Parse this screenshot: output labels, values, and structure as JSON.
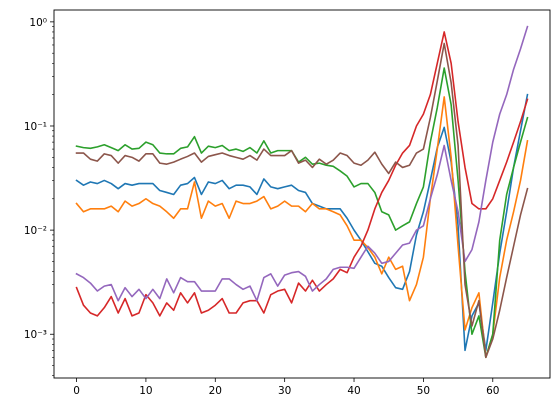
{
  "chart_data": {
    "type": "line",
    "title": "",
    "xlabel": "",
    "ylabel": "",
    "x": [
      0,
      1,
      2,
      3,
      4,
      5,
      6,
      7,
      8,
      9,
      10,
      11,
      12,
      13,
      14,
      15,
      16,
      17,
      18,
      19,
      20,
      21,
      22,
      23,
      24,
      25,
      26,
      27,
      28,
      29,
      30,
      31,
      32,
      33,
      34,
      35,
      36,
      37,
      38,
      39,
      40,
      41,
      42,
      43,
      44,
      45,
      46,
      47,
      48,
      49,
      50,
      51,
      52,
      53,
      54,
      55,
      56,
      57,
      58,
      59,
      60,
      61,
      62,
      63,
      64,
      65
    ],
    "xlim": [
      -3.25,
      68.25
    ],
    "ylim": [
      0.00038,
      1.3
    ],
    "yscale": "log",
    "grid": false,
    "xticks": [
      0,
      10,
      20,
      30,
      40,
      50,
      60
    ],
    "xtick_labels": [
      "0",
      "10",
      "20",
      "30",
      "40",
      "50",
      "60"
    ],
    "yticks": [
      0.001,
      0.01,
      0.1,
      1
    ],
    "ytick_labels": [
      "10⁻³",
      "10⁻²",
      "10⁻¹",
      "10⁰"
    ],
    "series": [
      {
        "color": "#1f77b4",
        "values": [
          0.03,
          0.027,
          0.029,
          0.028,
          0.03,
          0.028,
          0.025,
          0.028,
          0.027,
          0.028,
          0.028,
          0.028,
          0.024,
          0.023,
          0.022,
          0.027,
          0.028,
          0.032,
          0.022,
          0.029,
          0.028,
          0.03,
          0.025,
          0.027,
          0.027,
          0.026,
          0.022,
          0.031,
          0.026,
          0.025,
          0.026,
          0.027,
          0.024,
          0.023,
          0.018,
          0.017,
          0.016,
          0.016,
          0.016,
          0.013,
          0.01,
          0.008,
          0.0062,
          0.0048,
          0.0045,
          0.0035,
          0.0028,
          0.0027,
          0.004,
          0.009,
          0.015,
          0.03,
          0.062,
          0.097,
          0.045,
          0.011,
          0.0007,
          0.0015,
          0.002,
          0.0007,
          0.002,
          0.006,
          0.015,
          0.04,
          0.09,
          0.2
        ]
      },
      {
        "color": "#ff7f0e",
        "values": [
          0.018,
          0.015,
          0.016,
          0.016,
          0.016,
          0.017,
          0.015,
          0.019,
          0.017,
          0.018,
          0.02,
          0.018,
          0.017,
          0.015,
          0.013,
          0.016,
          0.016,
          0.029,
          0.013,
          0.019,
          0.017,
          0.018,
          0.013,
          0.019,
          0.018,
          0.018,
          0.019,
          0.021,
          0.016,
          0.017,
          0.019,
          0.017,
          0.017,
          0.015,
          0.018,
          0.016,
          0.016,
          0.015,
          0.014,
          0.011,
          0.008,
          0.008,
          0.0068,
          0.0055,
          0.0038,
          0.0055,
          0.0042,
          0.0045,
          0.0021,
          0.003,
          0.0055,
          0.02,
          0.06,
          0.19,
          0.05,
          0.007,
          0.0011,
          0.0018,
          0.0025,
          0.0006,
          0.001,
          0.0035,
          0.008,
          0.015,
          0.03,
          0.072
        ]
      },
      {
        "color": "#2ca02c",
        "values": [
          0.064,
          0.062,
          0.061,
          0.063,
          0.066,
          0.062,
          0.058,
          0.066,
          0.06,
          0.061,
          0.07,
          0.066,
          0.055,
          0.054,
          0.054,
          0.061,
          0.063,
          0.079,
          0.055,
          0.064,
          0.062,
          0.065,
          0.058,
          0.06,
          0.057,
          0.062,
          0.055,
          0.072,
          0.055,
          0.058,
          0.058,
          0.058,
          0.045,
          0.05,
          0.043,
          0.044,
          0.042,
          0.041,
          0.037,
          0.033,
          0.026,
          0.028,
          0.028,
          0.023,
          0.015,
          0.014,
          0.01,
          0.011,
          0.012,
          0.018,
          0.026,
          0.07,
          0.15,
          0.36,
          0.16,
          0.03,
          0.004,
          0.001,
          0.0015,
          0.0006,
          0.001,
          0.008,
          0.022,
          0.04,
          0.07,
          0.12
        ]
      },
      {
        "color": "#d62728",
        "values": [
          0.0028,
          0.0019,
          0.0016,
          0.0015,
          0.0018,
          0.0023,
          0.0016,
          0.0022,
          0.0015,
          0.0016,
          0.0024,
          0.002,
          0.0015,
          0.002,
          0.0017,
          0.0025,
          0.002,
          0.0025,
          0.0016,
          0.0017,
          0.0019,
          0.0022,
          0.0016,
          0.0016,
          0.002,
          0.0021,
          0.0021,
          0.0016,
          0.0024,
          0.0026,
          0.0027,
          0.002,
          0.0031,
          0.0026,
          0.0033,
          0.0026,
          0.003,
          0.0034,
          0.0042,
          0.0039,
          0.0055,
          0.007,
          0.01,
          0.016,
          0.023,
          0.03,
          0.042,
          0.055,
          0.065,
          0.1,
          0.13,
          0.2,
          0.4,
          0.8,
          0.4,
          0.11,
          0.04,
          0.018,
          0.016,
          0.016,
          0.02,
          0.03,
          0.045,
          0.07,
          0.11,
          0.18
        ]
      },
      {
        "color": "#9467bd",
        "values": [
          0.0038,
          0.0035,
          0.0031,
          0.0026,
          0.0029,
          0.003,
          0.0021,
          0.0028,
          0.0023,
          0.0027,
          0.0022,
          0.0027,
          0.0022,
          0.0034,
          0.0025,
          0.0035,
          0.0032,
          0.0032,
          0.0026,
          0.0026,
          0.0026,
          0.0034,
          0.0034,
          0.003,
          0.0027,
          0.0029,
          0.0021,
          0.0035,
          0.0038,
          0.0029,
          0.0037,
          0.0039,
          0.004,
          0.0036,
          0.0026,
          0.003,
          0.0034,
          0.0042,
          0.0044,
          0.0044,
          0.0043,
          0.0055,
          0.007,
          0.006,
          0.0048,
          0.005,
          0.006,
          0.0072,
          0.0075,
          0.01,
          0.011,
          0.02,
          0.034,
          0.065,
          0.03,
          0.015,
          0.005,
          0.0065,
          0.012,
          0.03,
          0.07,
          0.13,
          0.2,
          0.35,
          0.55,
          0.9
        ]
      },
      {
        "color": "#8c564b",
        "values": [
          0.055,
          0.055,
          0.048,
          0.046,
          0.054,
          0.052,
          0.044,
          0.052,
          0.05,
          0.046,
          0.054,
          0.054,
          0.044,
          0.043,
          0.045,
          0.048,
          0.051,
          0.055,
          0.045,
          0.051,
          0.053,
          0.055,
          0.052,
          0.05,
          0.048,
          0.052,
          0.047,
          0.06,
          0.052,
          0.052,
          0.052,
          0.058,
          0.044,
          0.047,
          0.04,
          0.048,
          0.043,
          0.047,
          0.055,
          0.052,
          0.044,
          0.042,
          0.047,
          0.056,
          0.043,
          0.035,
          0.045,
          0.04,
          0.042,
          0.055,
          0.06,
          0.12,
          0.27,
          0.62,
          0.26,
          0.065,
          0.003,
          0.0012,
          0.0021,
          0.0006,
          0.0009,
          0.0017,
          0.0035,
          0.007,
          0.014,
          0.025
        ]
      }
    ]
  }
}
